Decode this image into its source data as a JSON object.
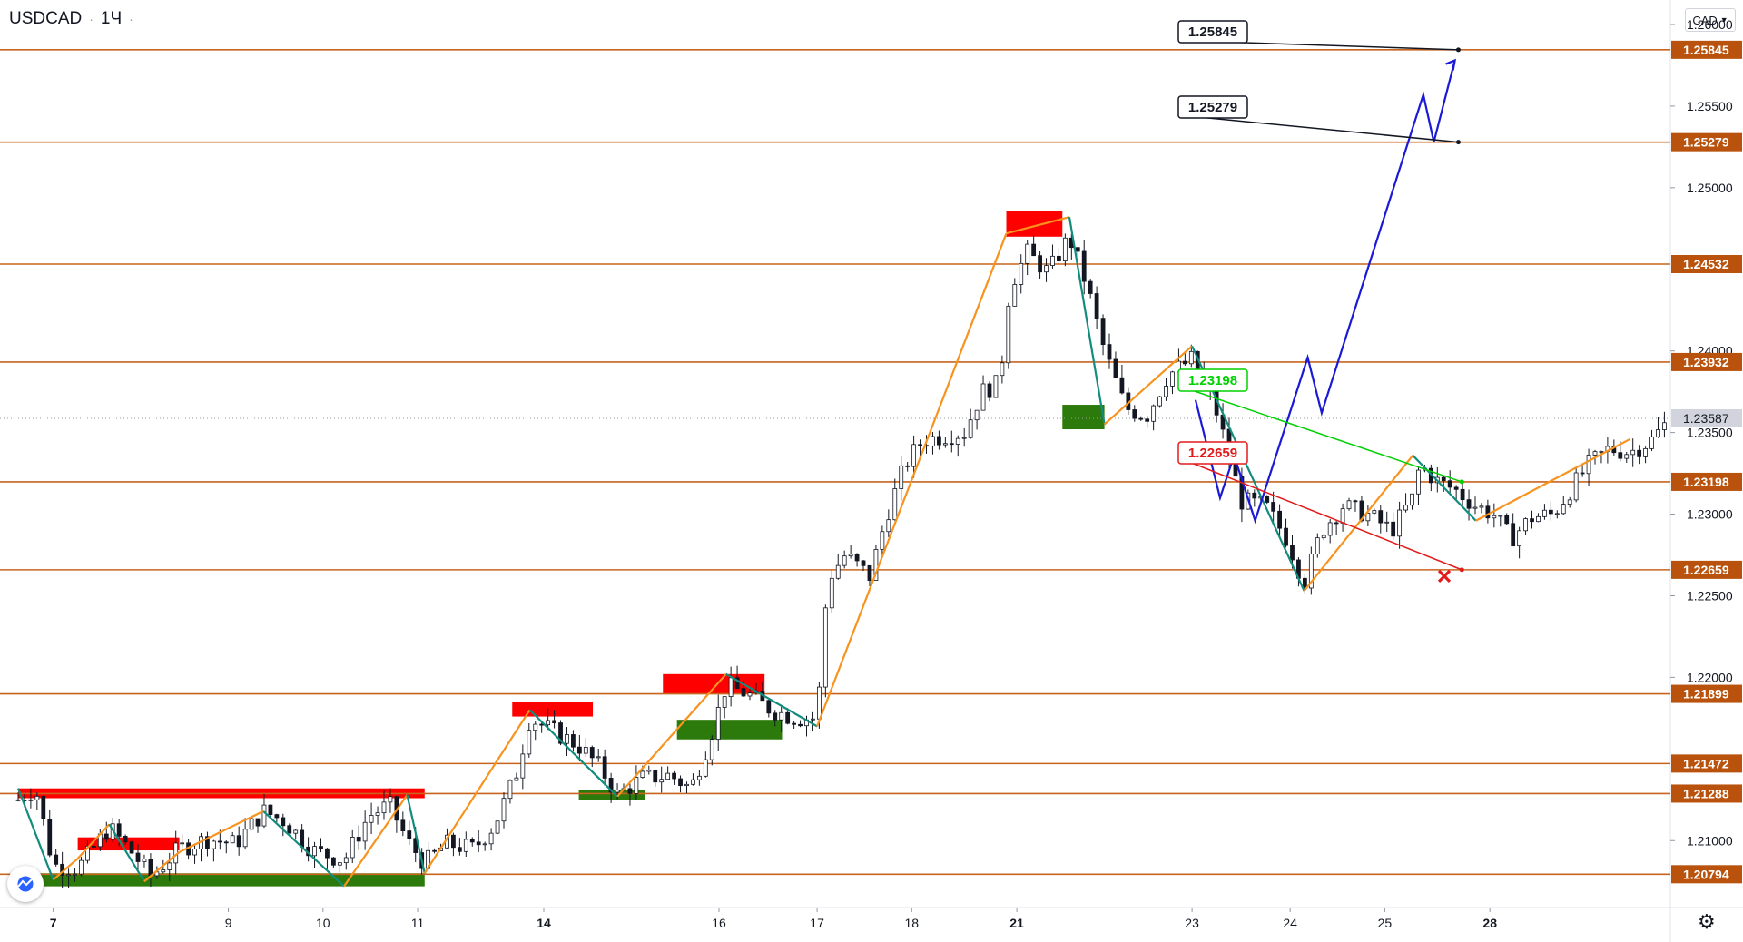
{
  "symbol": {
    "name": "USDCAD",
    "interval": "1Ч"
  },
  "currency_button": {
    "label": "CAD",
    "icon": "chevron-down-icon"
  },
  "icons": {
    "logo": "tradingview-logo-icon",
    "settings": "gear-icon"
  },
  "colors": {
    "level_line": "#c8641e",
    "level_label_bg": "#b8520d",
    "zigzag_up": "#f7931e",
    "zigzag_down": "#138c7e",
    "forecast": "#1a1ad6",
    "supply_zone": "#ff0000",
    "demand_zone": "#2b7a0b",
    "candle": "#131722",
    "target_green": "#00d100",
    "stop_red": "#e31b1b"
  },
  "chart_data": {
    "type": "candlestick",
    "ylim": [
      1.2059,
      1.2615
    ],
    "x_ticks": [
      "7",
      "9",
      "10",
      "11",
      "14",
      "16",
      "17",
      "18",
      "21",
      "23",
      "24",
      "25",
      "28"
    ],
    "y_ticks": [
      "1.26000",
      "1.25500",
      "1.25000",
      "1.24000",
      "1.23500",
      "1.23000",
      "1.22500",
      "1.22000",
      "1.21000"
    ],
    "levels": [
      "1.25845",
      "1.25279",
      "1.24532",
      "1.23932",
      "1.23198",
      "1.22659",
      "1.21899",
      "1.21472",
      "1.21288",
      "1.20794"
    ],
    "current_price": "1.23587",
    "targets": [
      {
        "label": "1.25845",
        "kind": "target"
      },
      {
        "label": "1.25279",
        "kind": "target"
      },
      {
        "label": "1.23198",
        "kind": "take-profit"
      },
      {
        "label": "1.22659",
        "kind": "stop-loss"
      }
    ],
    "price_path": [
      [
        0,
        1.2125
      ],
      [
        0.5,
        1.2132
      ],
      [
        1,
        1.2085
      ],
      [
        1.7,
        1.2083
      ],
      [
        2.6,
        1.2108
      ],
      [
        3.2,
        1.2094
      ],
      [
        3.8,
        1.2078
      ],
      [
        4.6,
        1.2095
      ],
      [
        5.4,
        1.2101
      ],
      [
        6.2,
        1.2098
      ],
      [
        7.0,
        1.2118
      ],
      [
        7.6,
        1.2112
      ],
      [
        8.4,
        1.2094
      ],
      [
        9.3,
        1.2088
      ],
      [
        10.0,
        1.2115
      ],
      [
        10.6,
        1.2122
      ],
      [
        11.1,
        1.21
      ],
      [
        11.6,
        1.2086
      ],
      [
        12.2,
        1.2098
      ],
      [
        13.0,
        1.2095
      ],
      [
        13.6,
        1.211
      ],
      [
        14.2,
        1.214
      ],
      [
        14.6,
        1.2175
      ],
      [
        15.2,
        1.2168
      ],
      [
        16.0,
        1.2158
      ],
      [
        16.6,
        1.2145
      ],
      [
        17.1,
        1.2128
      ],
      [
        17.8,
        1.2138
      ],
      [
        18.6,
        1.214
      ],
      [
        19.2,
        1.2132
      ],
      [
        19.7,
        1.216
      ],
      [
        20.2,
        1.2195
      ],
      [
        20.8,
        1.219
      ],
      [
        21.5,
        1.218
      ],
      [
        22.2,
        1.2175
      ],
      [
        22.8,
        1.2175
      ],
      [
        23.1,
        1.226
      ],
      [
        23.6,
        1.2275
      ],
      [
        24.3,
        1.2262
      ],
      [
        24.8,
        1.23
      ],
      [
        25.3,
        1.233
      ],
      [
        25.8,
        1.2345
      ],
      [
        26.4,
        1.2348
      ],
      [
        27.0,
        1.235
      ],
      [
        27.5,
        1.2375
      ],
      [
        28.0,
        1.238
      ],
      [
        28.3,
        1.244
      ],
      [
        28.8,
        1.246
      ],
      [
        29.4,
        1.2448
      ],
      [
        30.0,
        1.247
      ],
      [
        30.5,
        1.244
      ],
      [
        31.0,
        1.24
      ],
      [
        31.6,
        1.2365
      ],
      [
        32.2,
        1.236
      ],
      [
        32.8,
        1.2385
      ],
      [
        33.5,
        1.2395
      ],
      [
        34.1,
        1.237
      ],
      [
        34.5,
        1.234
      ],
      [
        34.9,
        1.2308
      ],
      [
        35.6,
        1.2305
      ],
      [
        36.2,
        1.2285
      ],
      [
        36.7,
        1.2258
      ],
      [
        37.2,
        1.229
      ],
      [
        37.8,
        1.2305
      ],
      [
        38.5,
        1.23
      ],
      [
        39.2,
        1.229
      ],
      [
        39.8,
        1.231
      ],
      [
        40.0,
        1.233
      ],
      [
        40.5,
        1.232
      ],
      [
        41.0,
        1.2315
      ],
      [
        41.6,
        1.2305
      ],
      [
        42.1,
        1.23
      ],
      [
        42.6,
        1.2285
      ],
      [
        43.2,
        1.2298
      ],
      [
        43.8,
        1.23
      ],
      [
        44.3,
        1.2315
      ],
      [
        44.8,
        1.233
      ],
      [
        45.4,
        1.234
      ],
      [
        46.0,
        1.2338
      ],
      [
        46.6,
        1.2345
      ],
      [
        47.0,
        1.2355
      ]
    ],
    "price_scale": {
      "x_ticks": [
        1,
        6,
        8.7,
        11.4,
        15,
        20,
        22.8,
        25.5,
        28.5,
        33.5,
        36.3,
        39,
        42
      ]
    }
  }
}
